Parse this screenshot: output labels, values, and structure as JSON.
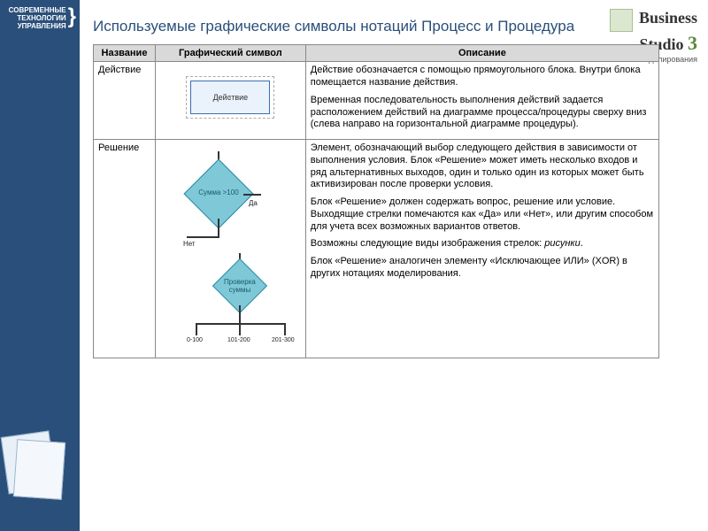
{
  "sidebar": {
    "brand_line1": "СОВРЕМЕННЫЕ",
    "brand_line2": "ТЕХНОЛОГИИ",
    "brand_line3": "УПРАВЛЕНИЯ",
    "bg_color": "#2a4f7a"
  },
  "header_logo": {
    "name": "Business",
    "name2": "Studio",
    "version": "3",
    "tagline": "Система бизнес-моделирования"
  },
  "title": "Используемые графические символы нотаций Процесс и Процедура",
  "table": {
    "columns": [
      "Название",
      "Графический символ",
      "Описание"
    ],
    "rows": [
      {
        "name": "Действие",
        "symbol": {
          "type": "process-box",
          "label": "Действие",
          "fill": "#eaf2fb",
          "border": "#3a6fb0"
        },
        "description": [
          "Действие обозначается с помощью прямоугольного блока. Внутри блока помещается название действия.",
          "Временная последовательность выполнения действий задается расположением действий на диаграмме процесса/процедуры сверху вниз (слева направо на горизонтальной диаграмме процедуры)."
        ]
      },
      {
        "name": "Решение",
        "symbol": {
          "type": "decision-diamonds",
          "diamond1": {
            "label": "Сумма >100",
            "yes": "Да",
            "no": "Нет",
            "fill": "#7ec8d8",
            "border": "#2a8aa0"
          },
          "diamond2": {
            "label": "Проверка суммы",
            "branches": [
              "0-100",
              "101-200",
              "201-300"
            ],
            "fill": "#7ec8d8",
            "border": "#2a8aa0"
          }
        },
        "description": [
          "Элемент, обозначающий выбор следующего действия в зависимости от выполнения условия. Блок «Решение» может иметь несколько входов и ряд альтернативных выходов, один и только один из которых может быть активизирован после проверки условия.",
          "Блок «Решение» должен содержать вопрос, решение или условие. Выходящие стрелки помечаются как «Да» или «Нет», или другим способом для учета всех возможных вариантов ответов.",
          "Возможны следующие виды изображения стрелок: <em>рисунки</em>.",
          "Блок «Решение» аналогичен элементу «Исключающее ИЛИ» (XOR) в других нотациях моделирования."
        ]
      }
    ]
  },
  "styling": {
    "title_color": "#2a4f7a",
    "title_fontsize": 17,
    "table_border": "#888888",
    "header_bg": "#d9d9d9",
    "body_font": "Arial",
    "cell_fontsize": 11
  }
}
